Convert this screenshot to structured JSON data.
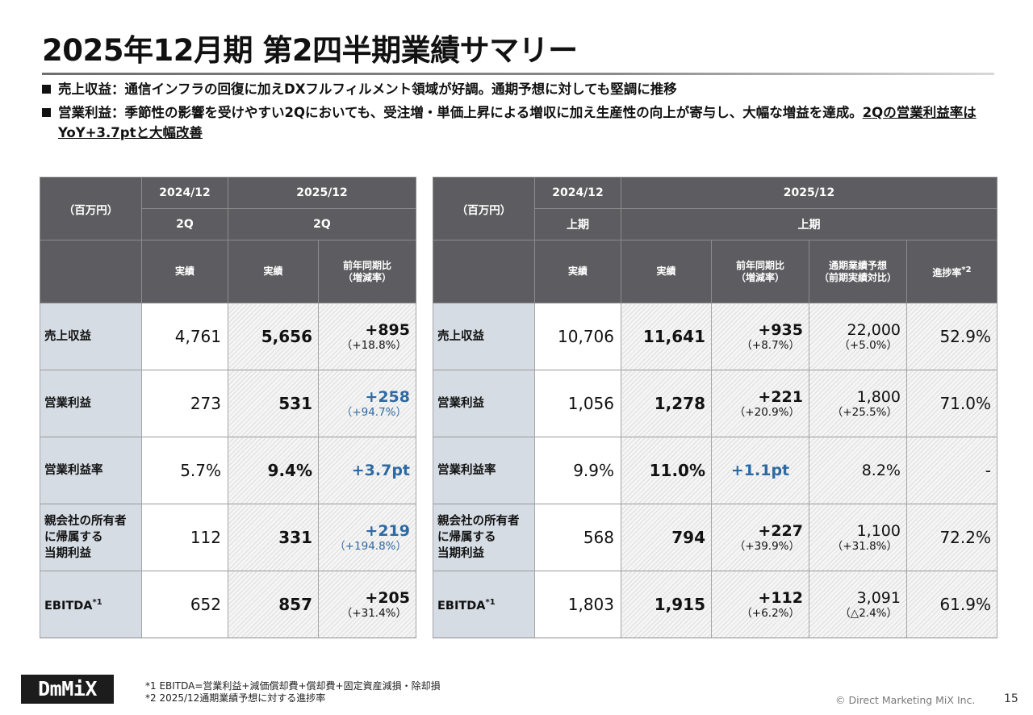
{
  "title": "2025年12月期 第2四半期業績サマリー",
  "bullets": {
    "b1": "売上収益：通信インフラの回復に加えDXフルフィルメント領域が好調。通期予想に対しても堅調に推移",
    "b2_text": "営業利益：季節性の影響を受けやすい2Qにおいても、受注増・単価上昇による増収に加え生産性の向上が寄与し、大幅な増益を達成。",
    "b2_underline": "2Qの営業利益率はYoY+3.7ptと大幅改善"
  },
  "left_table": {
    "unit": "（百万円）",
    "year_prev": "2024/12",
    "year_curr": "2025/12",
    "period_prev": "2Q",
    "period_curr": "2Q",
    "col_actual": "実績",
    "col_actual2": "実績",
    "col_yoy_line1": "前年同期比",
    "col_yoy_line2": "（増減率）",
    "rows": [
      {
        "label": "売上収益",
        "prev": "4,761",
        "curr": "5,656",
        "diff": "+895",
        "pct": "（+18.8%）"
      },
      {
        "label": "営業利益",
        "prev": "273",
        "curr": "531",
        "diff": "+258",
        "pct": "（+94.7%）"
      },
      {
        "label": "営業利益率",
        "prev": "5.7%",
        "curr": "9.4%",
        "diff": "+3.7pt",
        "pct": ""
      },
      {
        "label_l1": "親会社の所有者",
        "label_l2": "に帰属する",
        "label_l3": "当期利益",
        "prev": "112",
        "curr": "331",
        "diff": "+219",
        "pct": "（+194.8%）"
      },
      {
        "label": "EBITDA",
        "note": "*1",
        "prev": "652",
        "curr": "857",
        "diff": "+205",
        "pct": "（+31.4%）"
      }
    ]
  },
  "right_table": {
    "unit": "（百万円）",
    "year_prev": "2024/12",
    "year_curr": "2025/12",
    "period_prev": "上期",
    "period_curr": "上期",
    "col_actual": "実績",
    "col_actual2": "実績",
    "col_yoy_line1": "前年同期比",
    "col_yoy_line2": "（増減率）",
    "col_fc_line1": "通期業績予想",
    "col_fc_line2": "（前期実績対比）",
    "col_prog": "進捗率",
    "col_prog_note": "*2",
    "rows": [
      {
        "label": "売上収益",
        "prev": "10,706",
        "curr": "11,641",
        "diff": "+935",
        "pct": "（+8.7%）",
        "fc": "22,000",
        "fc_pct": "（+5.0%）",
        "prog": "52.9%"
      },
      {
        "label": "営業利益",
        "prev": "1,056",
        "curr": "1,278",
        "diff": "+221",
        "pct": "（+20.9%）",
        "fc": "1,800",
        "fc_pct": "（+25.5%）",
        "prog": "71.0%"
      },
      {
        "label": "営業利益率",
        "prev": "9.9%",
        "curr": "11.0%",
        "diff": "+1.1pt",
        "pct": "",
        "fc": "8.2%",
        "fc_pct": "",
        "prog": "-"
      },
      {
        "label_l1": "親会社の所有者",
        "label_l2": "に帰属する",
        "label_l3": "当期利益",
        "prev": "568",
        "curr": "794",
        "diff": "+227",
        "pct": "（+39.9%）",
        "fc": "1,100",
        "fc_pct": "（+31.8%）",
        "prog": "72.2%"
      },
      {
        "label": "EBITDA",
        "note": "*1",
        "prev": "1,803",
        "curr": "1,915",
        "diff": "+112",
        "pct": "（+6.2%）",
        "fc": "3,091",
        "fc_pct": "（△2.4%）",
        "prog": "61.9%"
      }
    ]
  },
  "footer": {
    "logo": "DmMiX",
    "note1": "*1  EBITDA=営業利益+減価償却費+償却費+固定資産減損・除却損",
    "note2": "*2  2025/12通期業績予想に対する進捗率",
    "copyright": "© Direct Marketing MiX Inc.",
    "page": "15"
  },
  "colors": {
    "header_bg": "#5d5d61",
    "label_bg": "#d6dce4",
    "accent_blue": "#2e6aa1"
  }
}
